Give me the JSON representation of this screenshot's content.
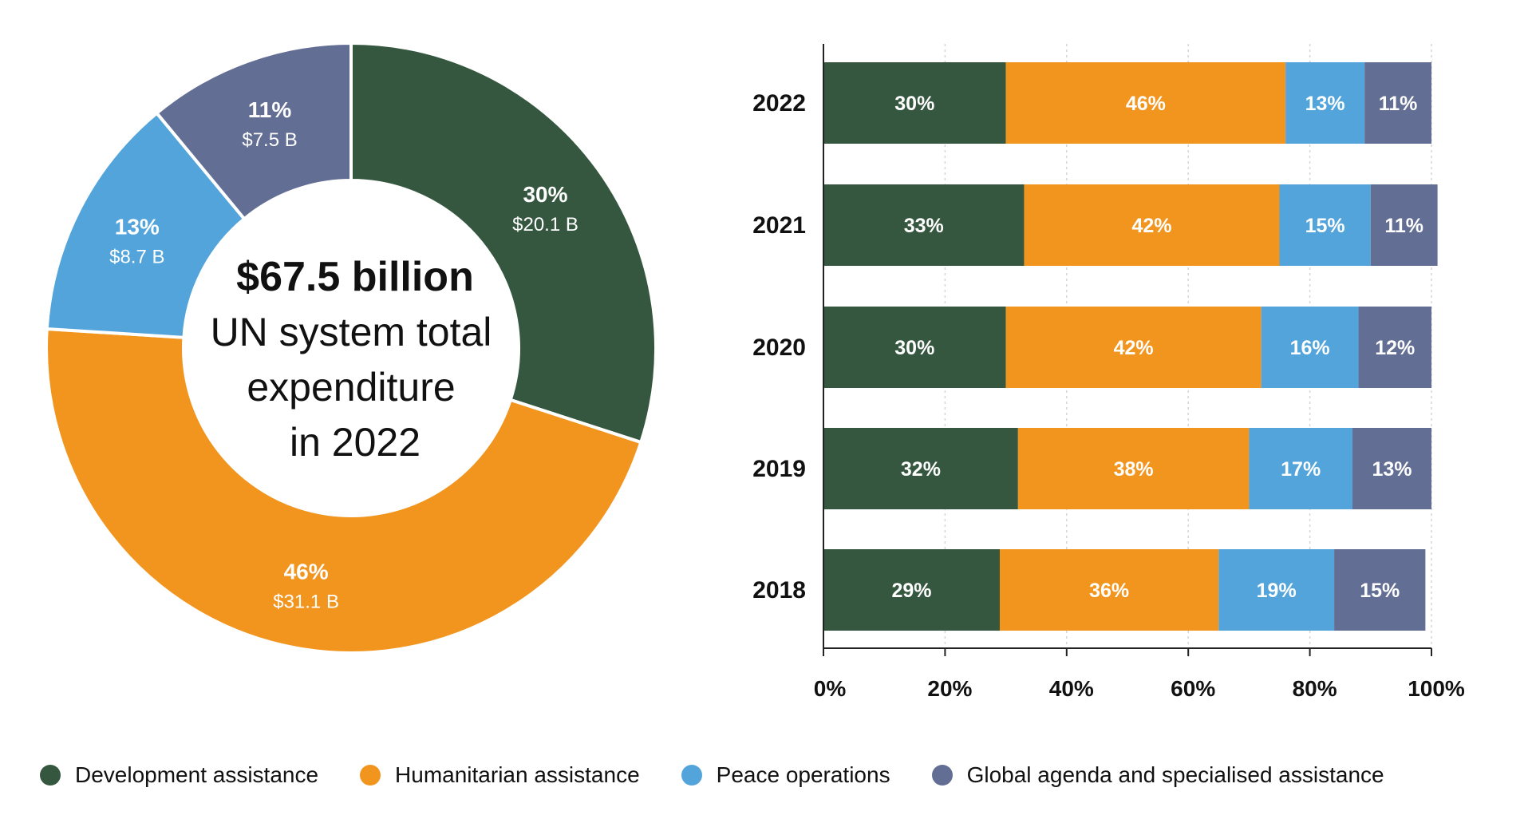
{
  "colors": {
    "development": "#36573F",
    "humanitarian": "#F2951E",
    "peace": "#52A4DB",
    "global": "#636E94",
    "axis": "#222222",
    "grid": "#d6d6d6",
    "text_dark": "#111111",
    "text_light": "#ffffff"
  },
  "donut_center": {
    "headline": "$67.5 billion",
    "line1": "UN system total",
    "line2": "expenditure",
    "line3": "in 2022"
  },
  "chart_data": [
    {
      "type": "pie",
      "variant": "donut",
      "slices": [
        {
          "key": "development",
          "percent": 30,
          "percent_label": "30%",
          "amount_label": "$20.1 B",
          "value": 20.1
        },
        {
          "key": "humanitarian",
          "percent": 46,
          "percent_label": "46%",
          "amount_label": "$31.1 B",
          "value": 31.1
        },
        {
          "key": "peace",
          "percent": 13,
          "percent_label": "13%",
          "amount_label": "$8.7 B",
          "value": 8.7
        },
        {
          "key": "global",
          "percent": 11,
          "percent_label": "11%",
          "amount_label": "$7.5 B",
          "value": 7.5
        }
      ]
    },
    {
      "type": "bar",
      "orientation": "horizontal",
      "stacked": true,
      "categories": [
        "2022",
        "2021",
        "2020",
        "2019",
        "2018"
      ],
      "series": [
        {
          "key": "development",
          "values": [
            30,
            33,
            30,
            32,
            29
          ],
          "labels": [
            "30%",
            "33%",
            "30%",
            "32%",
            "29%"
          ]
        },
        {
          "key": "humanitarian",
          "values": [
            46,
            42,
            42,
            38,
            36
          ],
          "labels": [
            "46%",
            "42%",
            "42%",
            "38%",
            "36%"
          ]
        },
        {
          "key": "peace",
          "values": [
            13,
            15,
            16,
            17,
            19
          ],
          "labels": [
            "13%",
            "15%",
            "16%",
            "17%",
            "19%"
          ]
        },
        {
          "key": "global",
          "values": [
            11,
            11,
            12,
            13,
            15
          ],
          "labels": [
            "11%",
            "11%",
            "12%",
            "13%",
            "15%"
          ]
        }
      ],
      "xlim": [
        0,
        100
      ],
      "xticks": [
        "0%",
        "20%",
        "40%",
        "60%",
        "80%",
        "100%"
      ],
      "grid": true
    }
  ],
  "legend": [
    {
      "key": "development",
      "label": "Development assistance"
    },
    {
      "key": "humanitarian",
      "label": "Humanitarian assistance"
    },
    {
      "key": "peace",
      "label": "Peace operations"
    },
    {
      "key": "global",
      "label": "Global agenda and specialised assistance"
    }
  ]
}
